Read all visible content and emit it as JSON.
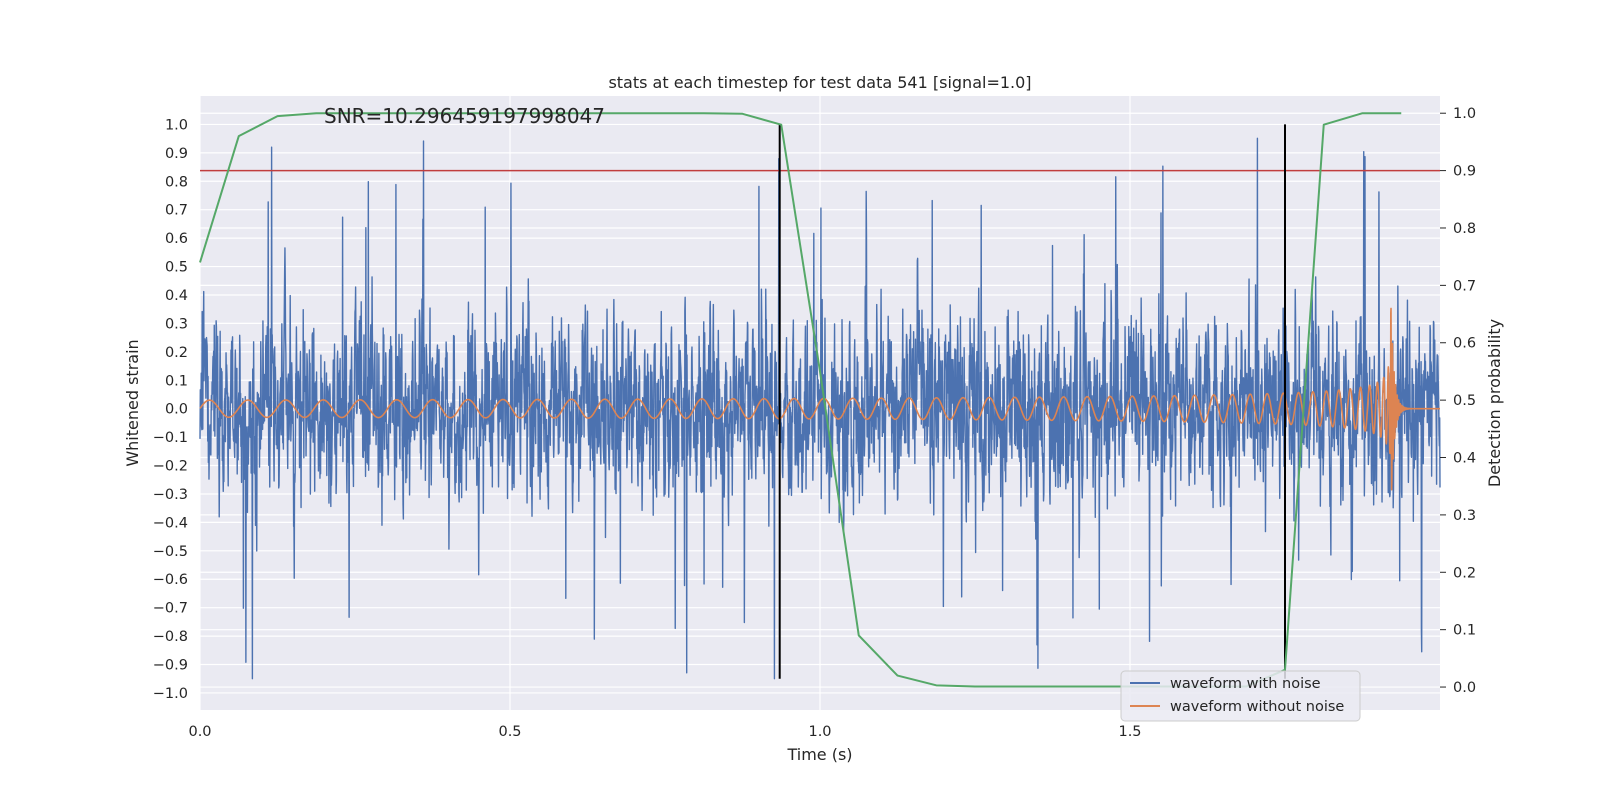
{
  "chart_data": {
    "type": "line",
    "title": "stats at each timestep for test data 541 [signal=1.0]",
    "xlabel": "Time (s)",
    "ylabel_left": "Whitened strain",
    "ylabel_right": "Detection probability",
    "annotation": "SNR=10.296459197998047",
    "xlim": [
      0.0,
      2.0
    ],
    "ylim_left": [
      -1.06,
      1.1
    ],
    "ylim_right": [
      -0.04,
      1.03
    ],
    "x_ticks": [
      0.0,
      0.5,
      1.0,
      1.5
    ],
    "x_tick_labels": [
      "0.0",
      "0.5",
      "1.0",
      "1.5"
    ],
    "y_ticks_left": [
      1.0,
      0.9,
      0.8,
      0.7,
      0.6,
      0.5,
      0.4,
      0.3,
      0.2,
      0.1,
      0.0,
      -0.1,
      -0.2,
      -0.3,
      -0.4,
      -0.5,
      -0.6,
      -0.7,
      -0.8,
      -0.9,
      -1.0
    ],
    "y_tick_labels_left": [
      "1.0",
      "0.9",
      "0.8",
      "0.7",
      "0.6",
      "0.5",
      "0.4",
      "0.3",
      "0.2",
      "0.1",
      "0.0",
      "−0.1",
      "−0.2",
      "−0.3",
      "−0.4",
      "−0.5",
      "−0.6",
      "−0.7",
      "−0.8",
      "−0.9",
      "−1.0"
    ],
    "y_ticks_right": [
      1.0,
      0.9,
      0.8,
      0.7,
      0.6,
      0.5,
      0.4,
      0.3,
      0.2,
      0.1,
      0.0
    ],
    "y_tick_labels_right": [
      "1.0",
      "0.9",
      "0.8",
      "0.7",
      "0.6",
      "0.5",
      "0.4",
      "0.3",
      "0.2",
      "0.1",
      "0.0"
    ],
    "threshold": {
      "axis": "right",
      "value": 0.9,
      "color": "#c03d3e"
    },
    "vertical_markers": {
      "x": [
        0.935,
        1.75
      ],
      "ymin": -0.95,
      "ymax": 1.0,
      "color": "#000000"
    },
    "series": [
      {
        "name": "waveform with noise",
        "axis": "left",
        "color": "#4c72b0",
        "generated": true,
        "amplitude_std": 0.26,
        "range": [
          -0.95,
          1.0
        ],
        "x_end": 2.0
      },
      {
        "name": "waveform without noise",
        "axis": "left",
        "color": "#dd8452",
        "chirp_start_freq": 16,
        "chirp_end_freq": 400,
        "start_amplitude": 0.03,
        "peak_amplitude": 0.45,
        "merger_time": 1.92,
        "x_end": 2.0
      },
      {
        "name": "Detection probability",
        "axis": "right",
        "color": "#55a868",
        "x": [
          0.0,
          0.0625,
          0.125,
          0.1875,
          0.25,
          0.3125,
          0.375,
          0.4375,
          0.5,
          0.5625,
          0.625,
          0.6875,
          0.75,
          0.8125,
          0.875,
          0.9375,
          1.0,
          1.0625,
          1.125,
          1.1875,
          1.25,
          1.3125,
          1.375,
          1.4375,
          1.5,
          1.5625,
          1.625,
          1.6875,
          1.75,
          1.8125,
          1.875,
          1.9375
        ],
        "y": [
          0.74,
          0.96,
          0.995,
          1.0,
          1.0,
          1.0,
          1.0,
          1.0,
          1.0,
          1.0,
          1.0,
          1.0,
          1.0,
          1.0,
          0.999,
          0.98,
          0.55,
          0.09,
          0.02,
          0.003,
          0.001,
          0.001,
          0.001,
          0.001,
          0.001,
          0.001,
          0.001,
          0.001,
          0.03,
          0.98,
          1.0,
          1.0
        ]
      }
    ],
    "legend": {
      "position": "lower-right",
      "entries": [
        "waveform with noise",
        "waveform without noise"
      ]
    }
  }
}
